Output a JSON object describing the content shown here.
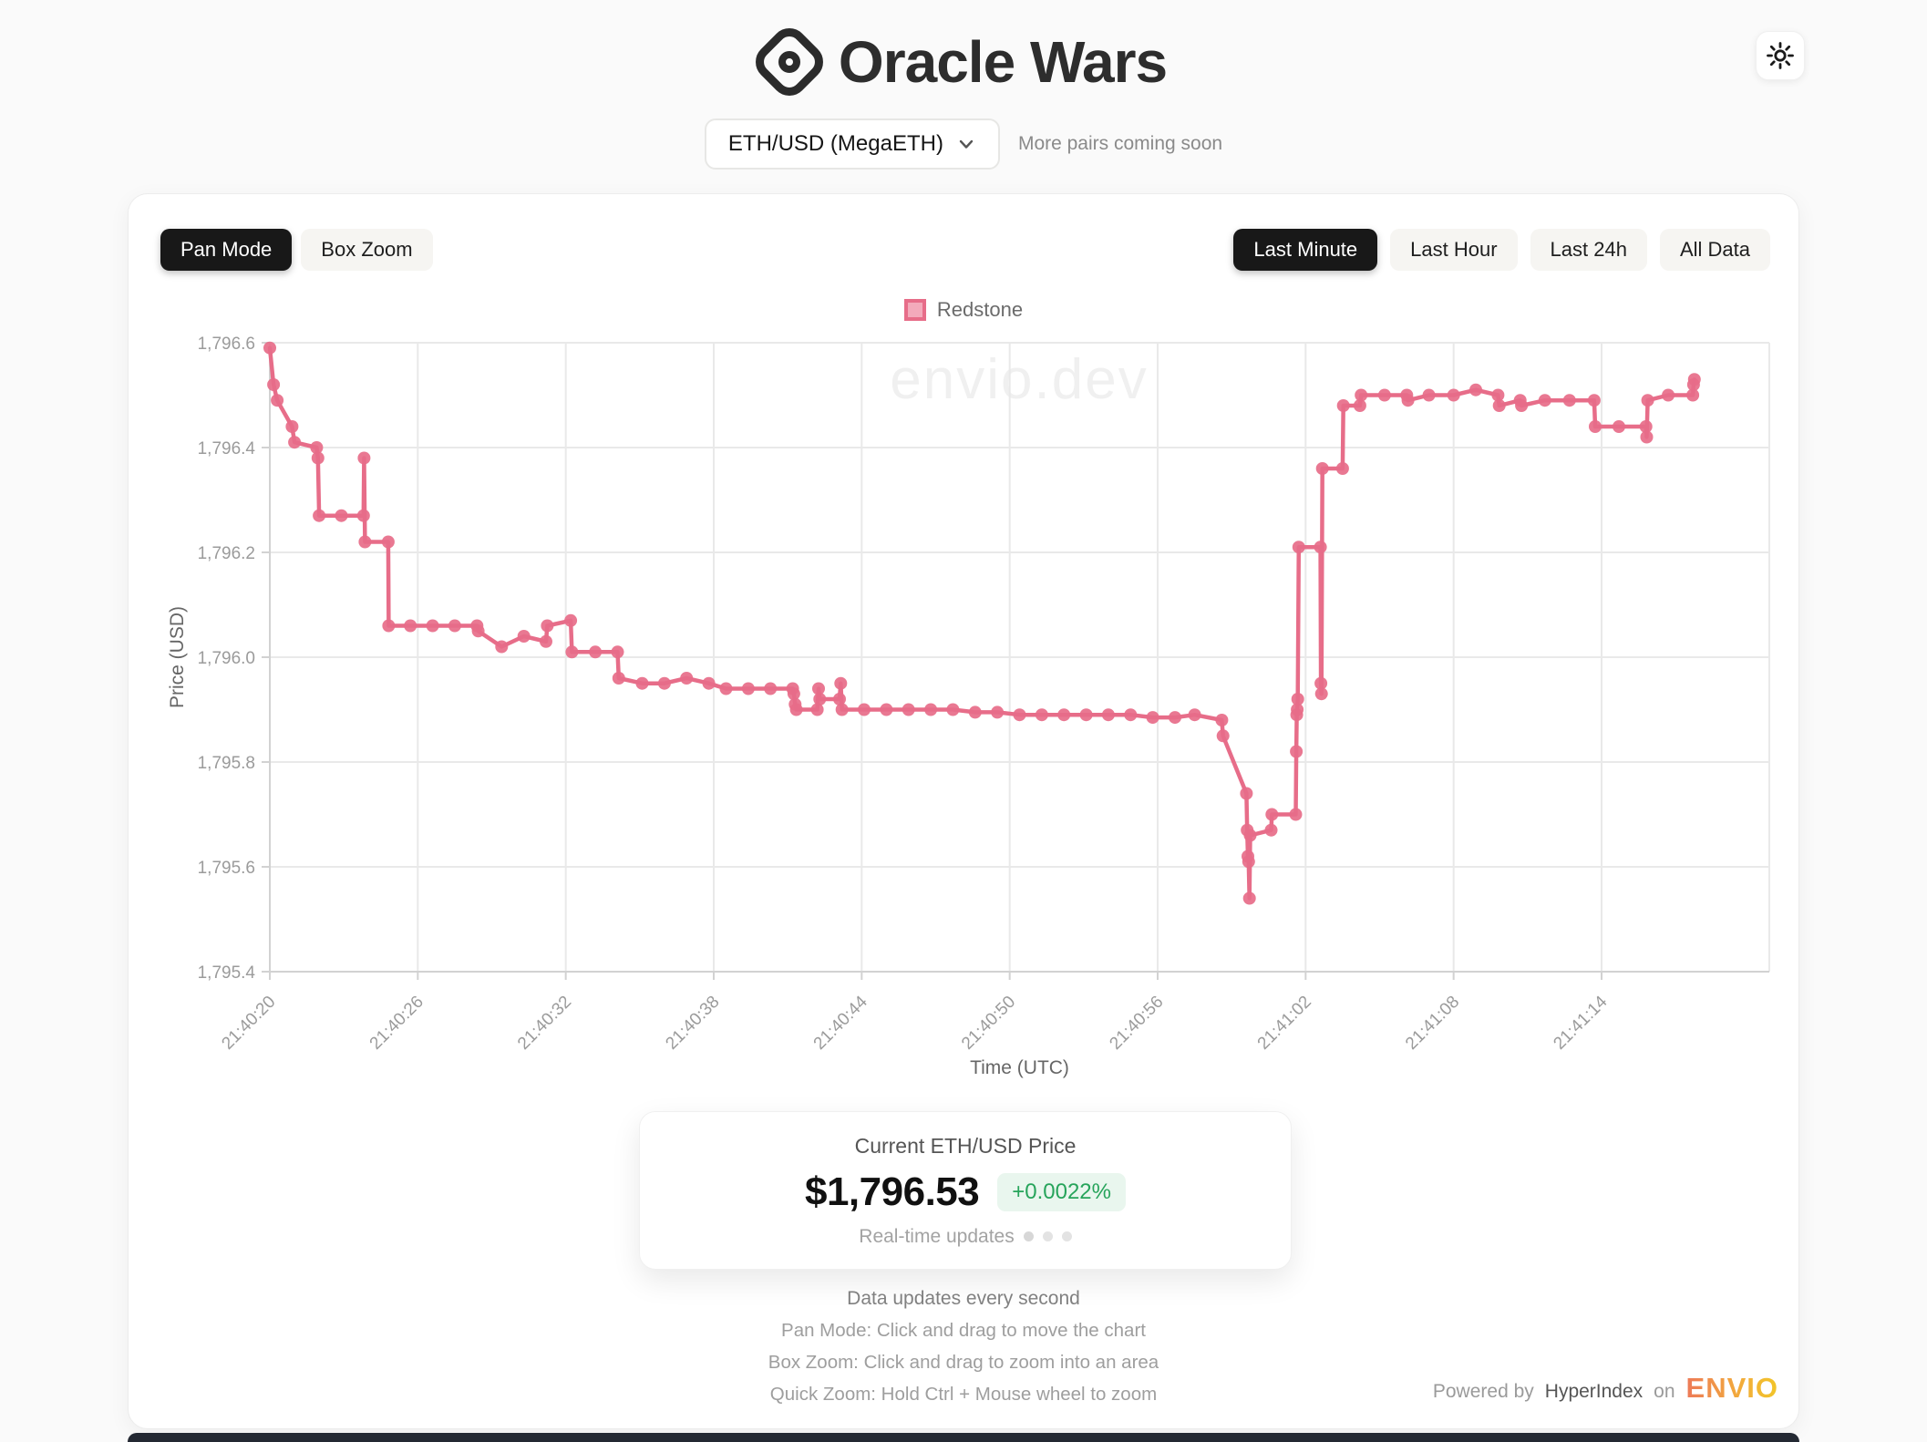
{
  "header": {
    "title": "Oracle Wars"
  },
  "theme": {
    "icon": "sun-icon"
  },
  "pair_selector": {
    "value": "ETH/USD (MegaETH)",
    "note": "More pairs coming soon"
  },
  "toolbar": {
    "pan_mode": "Pan Mode",
    "box_zoom": "Box Zoom",
    "active_mode": "Pan Mode",
    "ranges": [
      "Last Minute",
      "Last Hour",
      "Last 24h",
      "All Data"
    ],
    "active_range": "Last Minute"
  },
  "colors": {
    "accent": "#e76d89",
    "positive": "#27a45b",
    "active_button_bg": "#181818",
    "grid": "#e9e9e9",
    "axis": "#d2d2d2",
    "tick_text": "#9b9b9b",
    "axis_title_text": "#666666"
  },
  "chart_data": {
    "type": "line",
    "title": "",
    "xlabel": "Time (UTC)",
    "ylabel": "Price (USD)",
    "watermark": "envio.dev",
    "legend": [
      "Redstone"
    ],
    "legend_position": "top",
    "grid": true,
    "xlim": [
      0,
      60.8
    ],
    "ylim": [
      1795.4,
      1796.6
    ],
    "x_ticks": [
      [
        "21:40:20",
        0
      ],
      [
        "21:40:26",
        6
      ],
      [
        "21:40:32",
        12
      ],
      [
        "21:40:38",
        18
      ],
      [
        "21:40:44",
        24
      ],
      [
        "21:40:50",
        30
      ],
      [
        "21:40:56",
        36
      ],
      [
        "21:41:02",
        42
      ],
      [
        "21:41:08",
        48
      ],
      [
        "21:41:14",
        54
      ]
    ],
    "y_ticks": [
      [
        "1,795.4",
        1795.4
      ],
      [
        "1,795.6",
        1795.6
      ],
      [
        "1,795.8",
        1795.8
      ],
      [
        "1,796.0",
        1796.0
      ],
      [
        "1,796.2",
        1796.2
      ],
      [
        "1,796.4",
        1796.4
      ],
      [
        "1,796.6",
        1796.6
      ]
    ],
    "series": [
      {
        "name": "Redstone",
        "color": "#e76d89",
        "x_unit": "seconds after 21:40:20 UTC",
        "points": [
          [
            0,
            1796.59
          ],
          [
            0.15,
            1796.52
          ],
          [
            0.3,
            1796.49
          ],
          [
            0.9,
            1796.44
          ],
          [
            1.0,
            1796.41
          ],
          [
            1.9,
            1796.4
          ],
          [
            1.95,
            1796.38
          ],
          [
            2.0,
            1796.27
          ],
          [
            2.9,
            1796.27
          ],
          [
            3.8,
            1796.27
          ],
          [
            3.82,
            1796.38
          ],
          [
            3.86,
            1796.22
          ],
          [
            4.8,
            1796.22
          ],
          [
            4.82,
            1796.06
          ],
          [
            5.7,
            1796.06
          ],
          [
            6.6,
            1796.06
          ],
          [
            7.5,
            1796.06
          ],
          [
            8.4,
            1796.06
          ],
          [
            8.45,
            1796.05
          ],
          [
            9.4,
            1796.02
          ],
          [
            10.3,
            1796.04
          ],
          [
            11.2,
            1796.03
          ],
          [
            11.25,
            1796.06
          ],
          [
            12.2,
            1796.07
          ],
          [
            12.25,
            1796.01
          ],
          [
            13.2,
            1796.01
          ],
          [
            14.1,
            1796.01
          ],
          [
            14.15,
            1795.96
          ],
          [
            15.1,
            1795.95
          ],
          [
            16.0,
            1795.95
          ],
          [
            16.9,
            1795.96
          ],
          [
            17.8,
            1795.95
          ],
          [
            18.5,
            1795.94
          ],
          [
            19.4,
            1795.94
          ],
          [
            20.3,
            1795.94
          ],
          [
            21.2,
            1795.94
          ],
          [
            21.25,
            1795.93
          ],
          [
            21.3,
            1795.91
          ],
          [
            21.35,
            1795.9
          ],
          [
            22.2,
            1795.9
          ],
          [
            22.25,
            1795.94
          ],
          [
            22.3,
            1795.92
          ],
          [
            23.1,
            1795.92
          ],
          [
            23.15,
            1795.95
          ],
          [
            23.2,
            1795.9
          ],
          [
            24.1,
            1795.9
          ],
          [
            25.0,
            1795.9
          ],
          [
            25.9,
            1795.9
          ],
          [
            26.8,
            1795.9
          ],
          [
            27.7,
            1795.9
          ],
          [
            28.6,
            1795.895
          ],
          [
            29.5,
            1795.895
          ],
          [
            30.4,
            1795.89
          ],
          [
            31.3,
            1795.89
          ],
          [
            32.2,
            1795.89
          ],
          [
            33.1,
            1795.89
          ],
          [
            34.0,
            1795.89
          ],
          [
            34.9,
            1795.89
          ],
          [
            35.8,
            1795.885
          ],
          [
            36.7,
            1795.885
          ],
          [
            37.5,
            1795.89
          ],
          [
            38.6,
            1795.88
          ],
          [
            38.65,
            1795.85
          ],
          [
            39.6,
            1795.74
          ],
          [
            39.63,
            1795.67
          ],
          [
            39.66,
            1795.62
          ],
          [
            39.69,
            1795.61
          ],
          [
            39.72,
            1795.54
          ],
          [
            39.75,
            1795.66
          ],
          [
            40.6,
            1795.67
          ],
          [
            40.63,
            1795.7
          ],
          [
            41.6,
            1795.7
          ],
          [
            41.62,
            1795.82
          ],
          [
            41.64,
            1795.89
          ],
          [
            41.66,
            1795.9
          ],
          [
            41.68,
            1795.92
          ],
          [
            41.72,
            1796.21
          ],
          [
            42.6,
            1796.21
          ],
          [
            42.62,
            1795.95
          ],
          [
            42.64,
            1795.93
          ],
          [
            42.68,
            1796.36
          ],
          [
            43.5,
            1796.36
          ],
          [
            43.53,
            1796.48
          ],
          [
            44.2,
            1796.48
          ],
          [
            44.25,
            1796.5
          ],
          [
            45.2,
            1796.5
          ],
          [
            46.1,
            1796.5
          ],
          [
            46.15,
            1796.49
          ],
          [
            47.0,
            1796.5
          ],
          [
            48.0,
            1796.5
          ],
          [
            48.9,
            1796.51
          ],
          [
            49.8,
            1796.5
          ],
          [
            49.85,
            1796.48
          ],
          [
            50.7,
            1796.49
          ],
          [
            50.75,
            1796.48
          ],
          [
            51.7,
            1796.49
          ],
          [
            52.7,
            1796.49
          ],
          [
            53.7,
            1796.49
          ],
          [
            53.74,
            1796.44
          ],
          [
            54.7,
            1796.44
          ],
          [
            55.8,
            1796.44
          ],
          [
            55.83,
            1796.42
          ],
          [
            55.87,
            1796.49
          ],
          [
            56.7,
            1796.5
          ],
          [
            57.7,
            1796.5
          ],
          [
            57.73,
            1796.52
          ],
          [
            57.76,
            1796.53
          ]
        ]
      }
    ]
  },
  "price_card": {
    "label": "Current ETH/USD Price",
    "price": "$1,796.53",
    "change": "+0.0022%",
    "updates_label": "Real-time updates"
  },
  "hints": {
    "line1": "Data updates every second",
    "line2": "Pan Mode: Click and drag to move the chart",
    "line3": "Box Zoom: Click and drag to zoom into an area",
    "line4": "Quick Zoom: Hold Ctrl + Mouse wheel to zoom"
  },
  "powered": {
    "prefix": "Powered by",
    "link": "HyperIndex",
    "on": "on",
    "brand": "ENVIO"
  }
}
